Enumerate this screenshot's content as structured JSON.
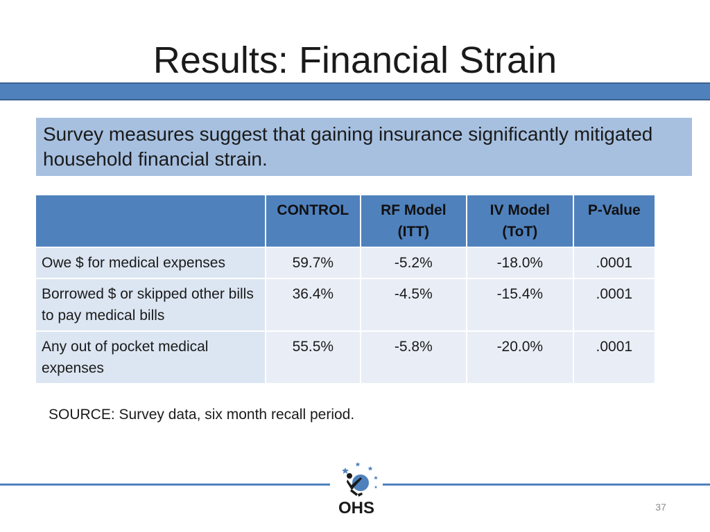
{
  "slide": {
    "title": "Results: Financial Strain",
    "subtitle": "Survey measures suggest that gaining insurance significantly mitigated household financial strain.",
    "source": "SOURCE: Survey data, six month recall period.",
    "page_number": "37",
    "logo_text": "OHS"
  },
  "table": {
    "headers": {
      "label": "",
      "control": "CONTROL",
      "rf_line1": "RF Model",
      "rf_line2": "(ITT)",
      "iv_line1": "IV Model",
      "iv_line2": "(ToT)",
      "pvalue": "P-Value"
    },
    "rows": [
      {
        "label": "Owe $ for medical expenses",
        "control": "59.7%",
        "rf": "-5.2%",
        "iv": "-18.0%",
        "p": ".0001"
      },
      {
        "label": "Borrowed $ or skipped other bills to pay medical bills",
        "control": "36.4%",
        "rf": "-4.5%",
        "iv": "-15.4%",
        "p": ".0001"
      },
      {
        "label": "Any out of pocket medical expenses",
        "control": "55.5%",
        "rf": "-5.8%",
        "iv": "-20.0%",
        "p": ".0001"
      }
    ]
  },
  "colors": {
    "accent_blue": "#4f81bd",
    "subtitle_box": "#a7c0e0",
    "cell_light": "#dce6f2"
  },
  "icons": {
    "logo": "ohs-logo-icon"
  }
}
